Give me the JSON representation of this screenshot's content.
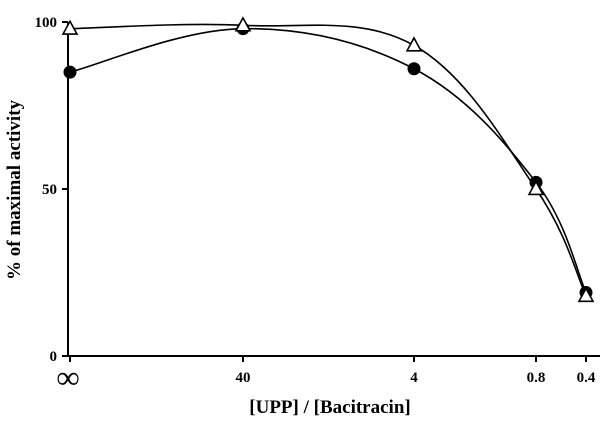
{
  "chart_data": {
    "type": "line",
    "xlabel": "[UPP] / [Bacitracin]",
    "ylabel": "% of maximal activity",
    "categories": [
      "∞",
      "40",
      "4",
      "0.8",
      "0.4"
    ],
    "ylim": [
      0,
      100
    ],
    "yticks": [
      "0",
      "50",
      "100"
    ],
    "grid": false,
    "series": [
      {
        "marker": "filled-circle",
        "values": [
          85,
          98,
          86,
          52,
          19
        ]
      },
      {
        "marker": "open-triangle",
        "values": [
          98,
          99,
          93,
          50,
          18
        ]
      }
    ]
  }
}
